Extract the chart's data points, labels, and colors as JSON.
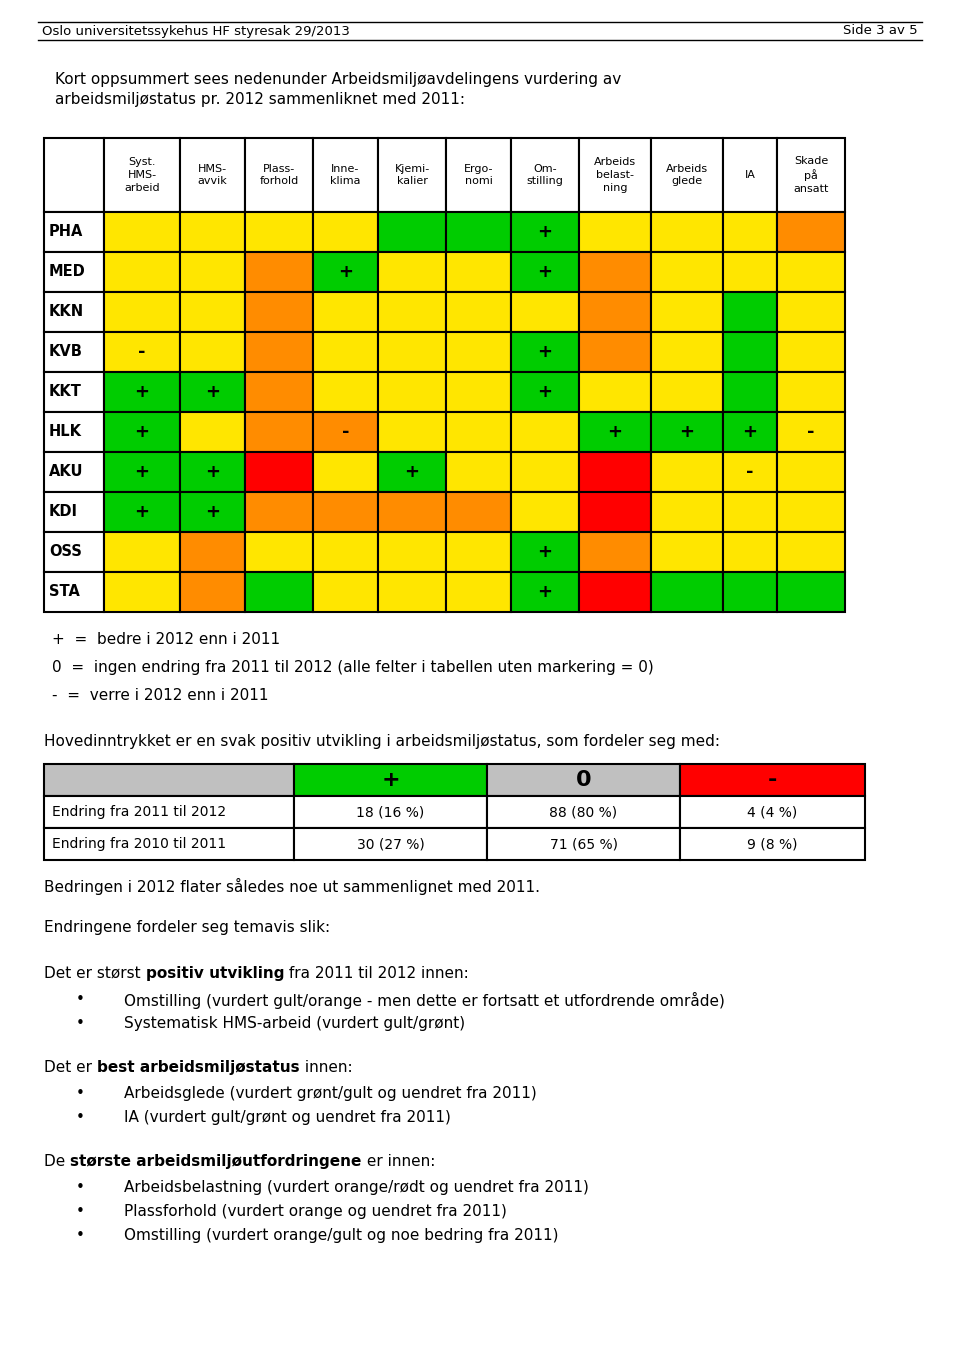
{
  "header_text_top": "Oslo universitetssykehus HF styresak 29/2013",
  "header_text_right": "Side 3 av 5",
  "intro_text_line1": "Kort oppsummert sees nedenunder Arbeidsmiljøavdelingens vurdering av",
  "intro_text_line2": "arbeidsmiljøstatus pr. 2012 sammenliknet med 2011:",
  "col_headers": [
    "Syst.\nHMS-\narbeid",
    "HMS-\navvik",
    "Plass-\nforhold",
    "Inne-\nklima",
    "Kjemi-\nkalier",
    "Ergo-\nnomi",
    "Om-\nstilling",
    "Arbeids\nbelast-\nning",
    "Arbeids\nglede",
    "IA",
    "Skade\npå\nansatt"
  ],
  "row_labels": [
    "PHA",
    "MED",
    "KKN",
    "KVB",
    "KKT",
    "HLK",
    "AKU",
    "KDI",
    "OSS",
    "STA"
  ],
  "Y": "#FFE600",
  "O": "#FF8C00",
  "G": "#00CC00",
  "R": "#FF0000",
  "table": [
    [
      "Y",
      "Y",
      "Y",
      "Y",
      "G",
      "G",
      "G",
      "Y",
      "Y",
      "Y",
      "O"
    ],
    [
      "Y",
      "Y",
      "O",
      "G",
      "Y",
      "Y",
      "G",
      "O",
      "Y",
      "Y",
      "Y"
    ],
    [
      "Y",
      "Y",
      "O",
      "Y",
      "Y",
      "Y",
      "Y",
      "O",
      "Y",
      "G",
      "Y"
    ],
    [
      "Y",
      "Y",
      "O",
      "Y",
      "Y",
      "Y",
      "G",
      "O",
      "Y",
      "G",
      "Y"
    ],
    [
      "G",
      "G",
      "O",
      "Y",
      "Y",
      "Y",
      "G",
      "Y",
      "Y",
      "G",
      "Y"
    ],
    [
      "G",
      "Y",
      "O",
      "O",
      "Y",
      "Y",
      "Y",
      "G",
      "G",
      "G",
      "Y"
    ],
    [
      "G",
      "G",
      "R",
      "Y",
      "G",
      "Y",
      "Y",
      "R",
      "Y",
      "Y",
      "Y"
    ],
    [
      "G",
      "G",
      "O",
      "O",
      "O",
      "O",
      "Y",
      "R",
      "Y",
      "Y",
      "Y"
    ],
    [
      "Y",
      "O",
      "Y",
      "Y",
      "Y",
      "Y",
      "G",
      "O",
      "Y",
      "Y",
      "Y"
    ],
    [
      "Y",
      "O",
      "G",
      "Y",
      "Y",
      "Y",
      "G",
      "R",
      "G",
      "G",
      "G"
    ]
  ],
  "markers": [
    [
      null,
      null,
      null,
      null,
      null,
      null,
      "+",
      null,
      null,
      null,
      null
    ],
    [
      null,
      null,
      null,
      "+",
      null,
      null,
      "+",
      null,
      null,
      null,
      null
    ],
    [
      null,
      null,
      null,
      null,
      null,
      null,
      null,
      null,
      null,
      null,
      null
    ],
    [
      "-",
      null,
      null,
      null,
      null,
      null,
      "+",
      null,
      null,
      null,
      null
    ],
    [
      "+",
      "+",
      null,
      null,
      null,
      null,
      "+",
      null,
      null,
      null,
      null
    ],
    [
      "+",
      null,
      null,
      "-",
      null,
      null,
      null,
      "+",
      "+",
      "+",
      "-"
    ],
    [
      "+",
      "+",
      null,
      null,
      "+",
      null,
      null,
      null,
      null,
      "-",
      null
    ],
    [
      "+",
      "+",
      null,
      null,
      null,
      null,
      null,
      null,
      null,
      null,
      null
    ],
    [
      null,
      null,
      null,
      null,
      null,
      null,
      "+",
      null,
      null,
      null,
      null
    ],
    [
      null,
      null,
      null,
      null,
      null,
      null,
      "+",
      null,
      null,
      null,
      null
    ]
  ],
  "legend_lines": [
    "+  =  bedre i 2012 enn i 2011",
    "0  =  ingen endring fra 2011 til 2012 (alle felter i tabellen uten markering = 0)",
    "-  =  verre i 2012 enn i 2011"
  ],
  "summary_title": "Hovedinntrykket er en svak positiv utvikling i arbeidsmiljøstatus, som fordeler seg med:",
  "summary_header_labels": [
    "+",
    "0",
    "-"
  ],
  "summary_header_colors": [
    "#00CC00",
    "#C0C0C0",
    "#FF0000"
  ],
  "summary_rows": [
    [
      "Endring fra 2011 til 2012",
      "18 (16 %)",
      "88 (80 %)",
      "4 (4 %)"
    ],
    [
      "Endring fra 2010 til 2011",
      "30 (27 %)",
      "71 (65 %)",
      "9 (8 %)"
    ]
  ],
  "bedring_text": "Bedringen i 2012 flater således noe ut sammenlignet med 2011.",
  "endringer_intro": "Endringene fordeler seg temavis slik:",
  "sections": [
    {
      "prefix": "Det er størst ",
      "bold": "positiv utvikling",
      "suffix": " fra 2011 til 2012 innen:",
      "bullets": [
        "Omstilling (vurdert gult/orange - men dette er fortsatt et utfordrende område)",
        "Systematisk HMS-arbeid (vurdert gult/grønt)"
      ]
    },
    {
      "prefix": "Det er ",
      "bold": "best arbeidsmiljøstatus",
      "suffix": " innen:",
      "bullets": [
        "Arbeidsglede (vurdert grønt/gult og uendret fra 2011)",
        "IA (vurdert gult/grønt og uendret fra 2011)"
      ]
    },
    {
      "prefix": "De ",
      "bold": "største arbeidsmiljøutfordringene",
      "suffix": " er innen:",
      "bullets": [
        "Arbeidsbelastning (vurdert orange/rødt og uendret fra 2011)",
        "Plassforhold (vurdert orange og uendret fra 2011)",
        "Omstilling (vurdert orange/gult og noe bedring fra 2011)"
      ]
    }
  ]
}
